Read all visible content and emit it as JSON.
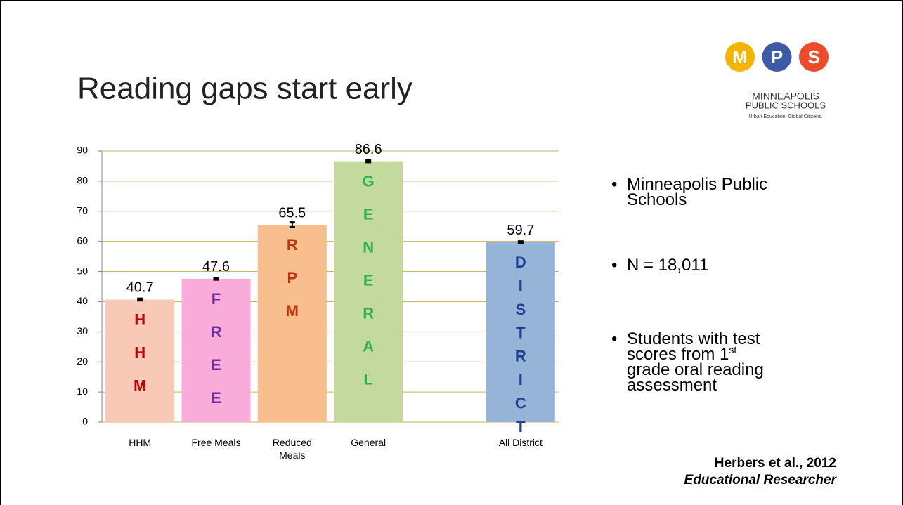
{
  "title": "Reading gaps start early",
  "logo": {
    "letters": [
      "M",
      "P",
      "S"
    ],
    "colors": [
      "#f5b400",
      "#3d5aa8",
      "#ee4b2b"
    ],
    "name_line1": "MINNEAPOLIS",
    "name_line2": "PUBLIC SCHOOLS",
    "tagline": "Urban Education. Global Citizens."
  },
  "chart_data": {
    "type": "bar",
    "categories": [
      "HHM",
      "Free Meals",
      "Reduced Meals",
      "General",
      null,
      "All District"
    ],
    "values": [
      40.7,
      47.6,
      65.5,
      86.6,
      null,
      59.7
    ],
    "errors": [
      0.3,
      0.3,
      0.8,
      0.3,
      null,
      0.3
    ],
    "bar_text": [
      "HHM",
      "FREE",
      "RPM",
      "GENERAL",
      null,
      "DISTRICT"
    ],
    "colors": [
      "#f8c9b6",
      "#f9abd9",
      "#f8be8d",
      "#c3d99d",
      null,
      "#96b3d8"
    ],
    "text_colors": [
      "#c00000",
      "#7030a0",
      "#c2330f",
      "#2db34a",
      null,
      "#1f3f8f"
    ],
    "ylim": [
      0,
      90
    ],
    "yticks": [
      0,
      10,
      20,
      30,
      40,
      50,
      60,
      70,
      80,
      90
    ],
    "grid": true,
    "grid_color": "#c9b560"
  },
  "bullets": [
    "Minneapolis Public Schools",
    "N = 18,011",
    {
      "text": "Students with test scores from 1",
      "sup": "st",
      "after": "grade oral reading assessment"
    }
  ],
  "citation": {
    "authors": "Herbers et al., 2012",
    "journal": "Educational Researcher"
  }
}
